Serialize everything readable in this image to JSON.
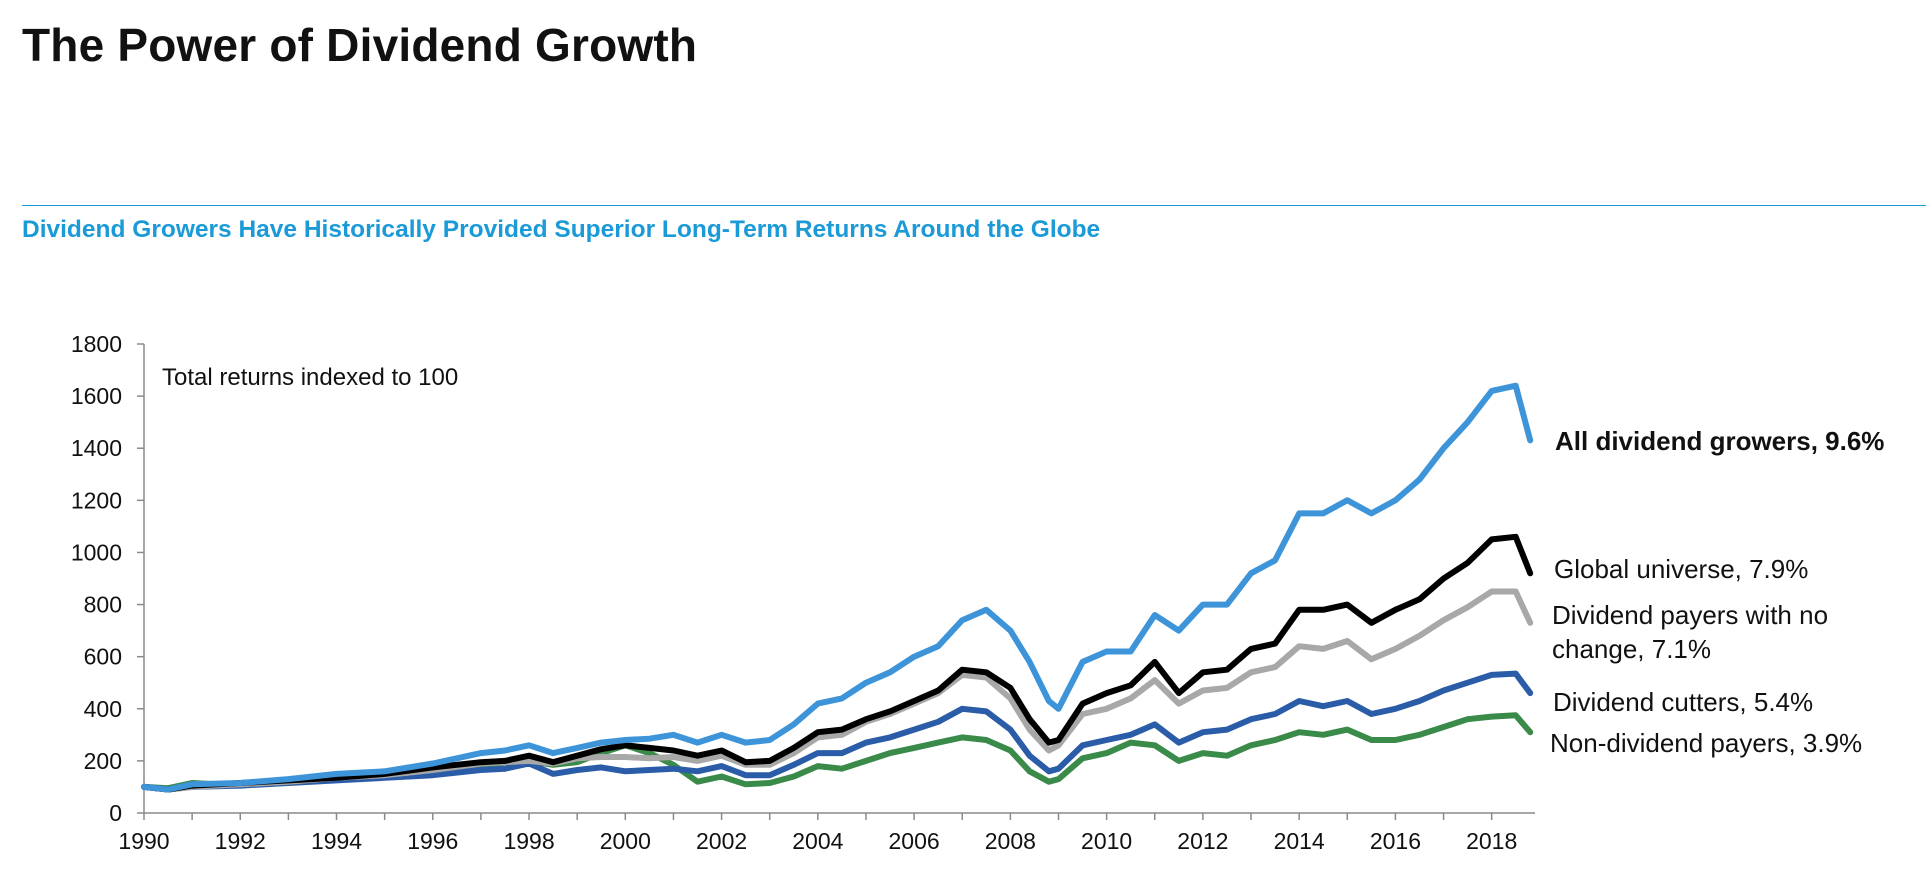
{
  "header": {
    "title": "The Power of Dividend Growth",
    "subtitle": "Dividend Growers Have Historically Provided Superior Long-Term Returns Around the Globe"
  },
  "chart_data": {
    "type": "line",
    "title": "",
    "xlabel": "",
    "ylabel": "",
    "xlim": [
      1990,
      2018.9
    ],
    "ylim": [
      0,
      1800
    ],
    "grid": false,
    "annotation": "Total returns indexed to 100",
    "x_ticks": [
      "1990",
      "1992",
      "1994",
      "1996",
      "1998",
      "2000",
      "2002",
      "2004",
      "2006",
      "2008",
      "2010",
      "2012",
      "2014",
      "2016",
      "2018"
    ],
    "y_ticks": [
      "0",
      "200",
      "400",
      "600",
      "800",
      "1000",
      "1200",
      "1400",
      "1600",
      "1800"
    ],
    "series": [
      {
        "name": "Non-dividend payers, 3.9%",
        "label_lines": [
          "Non-dividend payers, 3.9%"
        ],
        "color": "#3a8a4a",
        "label_color": "#111111",
        "label_bold": false,
        "points": [
          [
            1990,
            100
          ],
          [
            1990.5,
            95
          ],
          [
            1991,
            115
          ],
          [
            1992,
            105
          ],
          [
            1993,
            120
          ],
          [
            1994,
            130
          ],
          [
            1995,
            140
          ],
          [
            1996,
            155
          ],
          [
            1997,
            185
          ],
          [
            1997.5,
            170
          ],
          [
            1998,
            200
          ],
          [
            1998.5,
            185
          ],
          [
            1999,
            195
          ],
          [
            1999.5,
            230
          ],
          [
            2000,
            260
          ],
          [
            2000.5,
            230
          ],
          [
            2001,
            185
          ],
          [
            2001.5,
            120
          ],
          [
            2002,
            140
          ],
          [
            2002.5,
            110
          ],
          [
            2003,
            115
          ],
          [
            2003.5,
            140
          ],
          [
            2004,
            180
          ],
          [
            2004.5,
            170
          ],
          [
            2005,
            200
          ],
          [
            2005.5,
            230
          ],
          [
            2006,
            250
          ],
          [
            2006.5,
            270
          ],
          [
            2007,
            290
          ],
          [
            2007.5,
            280
          ],
          [
            2008,
            240
          ],
          [
            2008.4,
            160
          ],
          [
            2008.8,
            120
          ],
          [
            2009,
            130
          ],
          [
            2009.5,
            210
          ],
          [
            2010,
            230
          ],
          [
            2010.5,
            270
          ],
          [
            2011,
            260
          ],
          [
            2011.5,
            200
          ],
          [
            2012,
            230
          ],
          [
            2012.5,
            220
          ],
          [
            2013,
            260
          ],
          [
            2013.5,
            280
          ],
          [
            2014,
            310
          ],
          [
            2014.5,
            300
          ],
          [
            2015,
            320
          ],
          [
            2015.5,
            280
          ],
          [
            2016,
            280
          ],
          [
            2016.5,
            300
          ],
          [
            2017,
            330
          ],
          [
            2017.5,
            360
          ],
          [
            2018,
            370
          ],
          [
            2018.5,
            375
          ],
          [
            2018.8,
            310
          ]
        ]
      },
      {
        "name": "Dividend cutters, 5.4%",
        "label_lines": [
          "Dividend cutters, 5.4%"
        ],
        "color": "#2b5ca8",
        "label_color": "#111111",
        "label_bold": false,
        "points": [
          [
            1990,
            100
          ],
          [
            1990.5,
            90
          ],
          [
            1991,
            100
          ],
          [
            1992,
            105
          ],
          [
            1993,
            115
          ],
          [
            1994,
            125
          ],
          [
            1995,
            135
          ],
          [
            1996,
            145
          ],
          [
            1997,
            165
          ],
          [
            1997.5,
            170
          ],
          [
            1998,
            190
          ],
          [
            1998.5,
            150
          ],
          [
            1999,
            165
          ],
          [
            1999.5,
            175
          ],
          [
            2000,
            160
          ],
          [
            2000.5,
            165
          ],
          [
            2001,
            170
          ],
          [
            2001.5,
            160
          ],
          [
            2002,
            180
          ],
          [
            2002.5,
            145
          ],
          [
            2003,
            145
          ],
          [
            2003.5,
            185
          ],
          [
            2004,
            230
          ],
          [
            2004.5,
            230
          ],
          [
            2005,
            270
          ],
          [
            2005.5,
            290
          ],
          [
            2006,
            320
          ],
          [
            2006.5,
            350
          ],
          [
            2007,
            400
          ],
          [
            2007.5,
            390
          ],
          [
            2008,
            320
          ],
          [
            2008.4,
            220
          ],
          [
            2008.8,
            160
          ],
          [
            2009,
            170
          ],
          [
            2009.5,
            260
          ],
          [
            2010,
            280
          ],
          [
            2010.5,
            300
          ],
          [
            2011,
            340
          ],
          [
            2011.5,
            270
          ],
          [
            2012,
            310
          ],
          [
            2012.5,
            320
          ],
          [
            2013,
            360
          ],
          [
            2013.5,
            380
          ],
          [
            2014,
            430
          ],
          [
            2014.5,
            410
          ],
          [
            2015,
            430
          ],
          [
            2015.5,
            380
          ],
          [
            2016,
            400
          ],
          [
            2016.5,
            430
          ],
          [
            2017,
            470
          ],
          [
            2017.5,
            500
          ],
          [
            2018,
            530
          ],
          [
            2018.5,
            535
          ],
          [
            2018.8,
            460
          ]
        ]
      },
      {
        "name": "Dividend payers with no change, 7.1%",
        "label_lines": [
          "Dividend payers with no",
          "change, 7.1%"
        ],
        "color": "#a8a8a8",
        "label_color": "#111111",
        "label_bold": false,
        "points": [
          [
            1990,
            100
          ],
          [
            1990.5,
            90
          ],
          [
            1991,
            100
          ],
          [
            1992,
            110
          ],
          [
            1993,
            120
          ],
          [
            1994,
            135
          ],
          [
            1995,
            145
          ],
          [
            1996,
            165
          ],
          [
            1997,
            190
          ],
          [
            1997.5,
            195
          ],
          [
            1998,
            200
          ],
          [
            1998.5,
            190
          ],
          [
            1999,
            210
          ],
          [
            1999.5,
            215
          ],
          [
            2000,
            215
          ],
          [
            2000.5,
            210
          ],
          [
            2001,
            215
          ],
          [
            2001.5,
            200
          ],
          [
            2002,
            220
          ],
          [
            2002.5,
            185
          ],
          [
            2003,
            185
          ],
          [
            2003.5,
            230
          ],
          [
            2004,
            290
          ],
          [
            2004.5,
            300
          ],
          [
            2005,
            350
          ],
          [
            2005.5,
            380
          ],
          [
            2006,
            420
          ],
          [
            2006.5,
            460
          ],
          [
            2007,
            530
          ],
          [
            2007.5,
            520
          ],
          [
            2008,
            440
          ],
          [
            2008.4,
            320
          ],
          [
            2008.8,
            240
          ],
          [
            2009,
            260
          ],
          [
            2009.5,
            380
          ],
          [
            2010,
            400
          ],
          [
            2010.5,
            440
          ],
          [
            2011,
            510
          ],
          [
            2011.5,
            420
          ],
          [
            2012,
            470
          ],
          [
            2012.5,
            480
          ],
          [
            2013,
            540
          ],
          [
            2013.5,
            560
          ],
          [
            2014,
            640
          ],
          [
            2014.5,
            630
          ],
          [
            2015,
            660
          ],
          [
            2015.5,
            590
          ],
          [
            2016,
            630
          ],
          [
            2016.5,
            680
          ],
          [
            2017,
            740
          ],
          [
            2017.5,
            790
          ],
          [
            2018,
            850
          ],
          [
            2018.5,
            850
          ],
          [
            2018.8,
            730
          ]
        ]
      },
      {
        "name": "Global universe, 7.9%",
        "label_lines": [
          "Global universe, 7.9%"
        ],
        "color": "#000000",
        "label_color": "#111111",
        "label_bold": false,
        "points": [
          [
            1990,
            100
          ],
          [
            1990.5,
            90
          ],
          [
            1991,
            105
          ],
          [
            1992,
            115
          ],
          [
            1993,
            125
          ],
          [
            1994,
            135
          ],
          [
            1995,
            150
          ],
          [
            1996,
            175
          ],
          [
            1997,
            195
          ],
          [
            1997.5,
            200
          ],
          [
            1998,
            220
          ],
          [
            1998.5,
            195
          ],
          [
            1999,
            220
          ],
          [
            1999.5,
            245
          ],
          [
            2000,
            260
          ],
          [
            2000.5,
            250
          ],
          [
            2001,
            240
          ],
          [
            2001.5,
            220
          ],
          [
            2002,
            240
          ],
          [
            2002.5,
            195
          ],
          [
            2003,
            200
          ],
          [
            2003.5,
            250
          ],
          [
            2004,
            310
          ],
          [
            2004.5,
            320
          ],
          [
            2005,
            360
          ],
          [
            2005.5,
            390
          ],
          [
            2006,
            430
          ],
          [
            2006.5,
            470
          ],
          [
            2007,
            550
          ],
          [
            2007.5,
            540
          ],
          [
            2008,
            480
          ],
          [
            2008.4,
            360
          ],
          [
            2008.8,
            270
          ],
          [
            2009,
            280
          ],
          [
            2009.5,
            420
          ],
          [
            2010,
            460
          ],
          [
            2010.5,
            490
          ],
          [
            2011,
            580
          ],
          [
            2011.5,
            460
          ],
          [
            2012,
            540
          ],
          [
            2012.5,
            550
          ],
          [
            2013,
            630
          ],
          [
            2013.5,
            650
          ],
          [
            2014,
            780
          ],
          [
            2014.5,
            780
          ],
          [
            2015,
            800
          ],
          [
            2015.5,
            730
          ],
          [
            2016,
            780
          ],
          [
            2016.5,
            820
          ],
          [
            2017,
            900
          ],
          [
            2017.5,
            960
          ],
          [
            2018,
            1050
          ],
          [
            2018.5,
            1060
          ],
          [
            2018.8,
            920
          ]
        ]
      },
      {
        "name": "All dividend growers, 9.6%",
        "label_lines": [
          "All dividend growers, 9.6%"
        ],
        "color": "#3d94d9",
        "label_color": "#3d94d9",
        "label_bold": true,
        "points": [
          [
            1990,
            100
          ],
          [
            1990.5,
            90
          ],
          [
            1991,
            110
          ],
          [
            1992,
            115
          ],
          [
            1993,
            130
          ],
          [
            1994,
            150
          ],
          [
            1995,
            160
          ],
          [
            1996,
            190
          ],
          [
            1997,
            230
          ],
          [
            1997.5,
            240
          ],
          [
            1998,
            260
          ],
          [
            1998.5,
            230
          ],
          [
            1999,
            250
          ],
          [
            1999.5,
            270
          ],
          [
            2000,
            280
          ],
          [
            2000.5,
            285
          ],
          [
            2001,
            300
          ],
          [
            2001.5,
            270
          ],
          [
            2002,
            300
          ],
          [
            2002.5,
            270
          ],
          [
            2003,
            280
          ],
          [
            2003.5,
            340
          ],
          [
            2004,
            420
          ],
          [
            2004.5,
            440
          ],
          [
            2005,
            500
          ],
          [
            2005.5,
            540
          ],
          [
            2006,
            600
          ],
          [
            2006.5,
            640
          ],
          [
            2007,
            740
          ],
          [
            2007.5,
            780
          ],
          [
            2008,
            700
          ],
          [
            2008.4,
            580
          ],
          [
            2008.8,
            430
          ],
          [
            2009,
            400
          ],
          [
            2009.5,
            580
          ],
          [
            2010,
            620
          ],
          [
            2010.5,
            620
          ],
          [
            2011,
            760
          ],
          [
            2011.5,
            700
          ],
          [
            2012,
            800
          ],
          [
            2012.5,
            800
          ],
          [
            2013,
            920
          ],
          [
            2013.5,
            970
          ],
          [
            2014,
            1150
          ],
          [
            2014.5,
            1150
          ],
          [
            2015,
            1200
          ],
          [
            2015.5,
            1150
          ],
          [
            2016,
            1200
          ],
          [
            2016.5,
            1280
          ],
          [
            2017,
            1400
          ],
          [
            2017.5,
            1500
          ],
          [
            2018,
            1620
          ],
          [
            2018.5,
            1640
          ],
          [
            2018.8,
            1430
          ]
        ]
      }
    ]
  }
}
